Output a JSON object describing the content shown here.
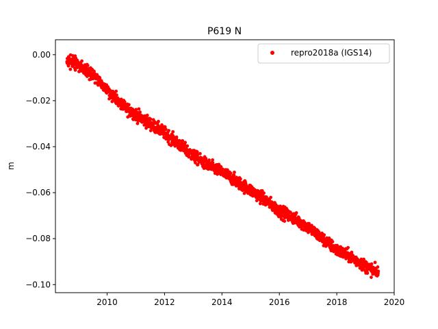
{
  "chart_data": {
    "type": "scatter",
    "title": "P619 N",
    "xlabel": "",
    "ylabel": "m",
    "xlim": [
      2008.2,
      2020.0
    ],
    "ylim": [
      -0.1035,
      0.0065
    ],
    "x_ticks": [
      2010,
      2012,
      2014,
      2016,
      2018,
      2020
    ],
    "x_tick_labels": [
      "2010",
      "2012",
      "2014",
      "2016",
      "2018",
      "2020"
    ],
    "y_ticks": [
      0.0,
      -0.02,
      -0.04,
      -0.06,
      -0.08,
      -0.1
    ],
    "y_tick_labels": [
      "0.00",
      "−0.02",
      "−0.04",
      "−0.06",
      "−0.08",
      "−0.10"
    ],
    "grid": false,
    "legend_position": "upper right",
    "series": [
      {
        "name": "repro2018a (IGS14)",
        "color": "#ff0000",
        "marker": "circle",
        "x_range": [
          2008.6,
          2019.45
        ],
        "x": [
          2008.6,
          2009.0,
          2009.5,
          2010.0,
          2010.5,
          2011.0,
          2011.5,
          2012.0,
          2012.5,
          2013.0,
          2013.5,
          2014.0,
          2014.5,
          2015.0,
          2015.5,
          2016.0,
          2016.5,
          2017.0,
          2017.5,
          2018.0,
          2018.5,
          2019.0,
          2019.45
        ],
        "y": [
          -0.002,
          -0.004,
          -0.009,
          -0.015,
          -0.022,
          -0.026,
          -0.03,
          -0.034,
          -0.039,
          -0.044,
          -0.048,
          -0.051,
          -0.055,
          -0.059,
          -0.063,
          -0.068,
          -0.071,
          -0.075,
          -0.08,
          -0.085,
          -0.088,
          -0.092,
          -0.095
        ],
        "scatter_amplitude": 0.0022
      }
    ]
  }
}
